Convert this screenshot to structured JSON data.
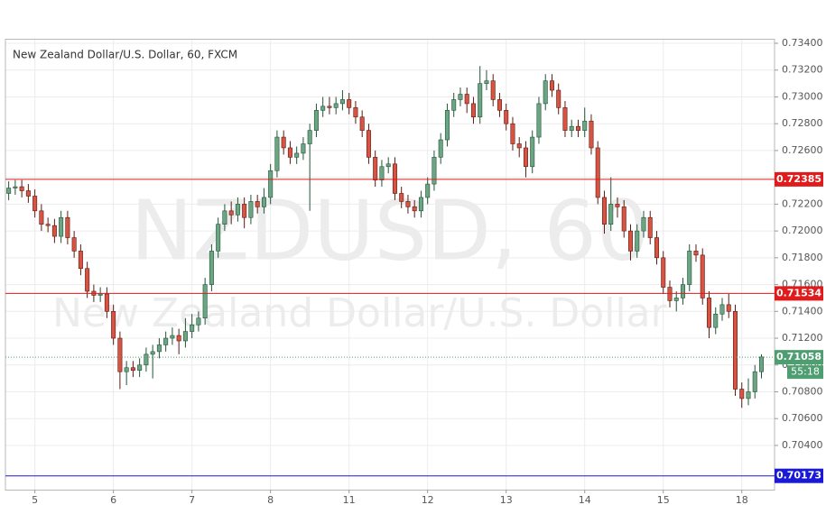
{
  "chart_data": {
    "type": "candlestick",
    "title": "New Zealand Dollar/U.S. Dollar, 60, FXCM",
    "watermark": "NZDUSD, 60",
    "watermark_sub": "New Zealand Dollar/U.S. Dollar",
    "up_color": "#6ba583",
    "down_color": "#d75442",
    "up_border": "#225437",
    "down_border": "#5b1a13",
    "grid": true,
    "xlim": [
      -9,
      226
    ],
    "xticks": [
      {
        "value": 0,
        "label": "5"
      },
      {
        "value": 24,
        "label": "6"
      },
      {
        "value": 48,
        "label": "7"
      },
      {
        "value": 72,
        "label": "8"
      },
      {
        "value": 96,
        "label": "11"
      },
      {
        "value": 120,
        "label": "12"
      },
      {
        "value": 144,
        "label": "13"
      },
      {
        "value": 168,
        "label": "14"
      },
      {
        "value": 192,
        "label": "15"
      },
      {
        "value": 216,
        "label": "18"
      }
    ],
    "ylim": [
      0.7007,
      0.73427
    ],
    "yticks": [
      {
        "value": 0.704,
        "label": "0.70400"
      },
      {
        "value": 0.706,
        "label": "0.70600"
      },
      {
        "value": 0.708,
        "label": "0.70800"
      },
      {
        "value": 0.71,
        "label": "0.71000"
      },
      {
        "value": 0.712,
        "label": "0.71200"
      },
      {
        "value": 0.714,
        "label": "0.71400"
      },
      {
        "value": 0.716,
        "label": "0.71600"
      },
      {
        "value": 0.718,
        "label": "0.71800"
      },
      {
        "value": 0.72,
        "label": "0.72000"
      },
      {
        "value": 0.722,
        "label": "0.72200"
      },
      {
        "value": 0.724,
        "label": "0.72400"
      },
      {
        "value": 0.726,
        "label": "0.72600"
      },
      {
        "value": 0.728,
        "label": "0.72800"
      },
      {
        "value": 0.73,
        "label": "0.73000"
      },
      {
        "value": 0.732,
        "label": "0.73200"
      },
      {
        "value": 0.734,
        "label": "0.73400"
      }
    ],
    "levels": [
      {
        "value": 0.72385,
        "color": "#e01b1b"
      },
      {
        "value": 0.71534,
        "color": "#e01b1b"
      },
      {
        "value": 0.70173,
        "color": "#1a1ad6"
      }
    ],
    "last_price": 0.71058,
    "last_color": "#4e9e72",
    "countdown": "55:18",
    "x": [
      -8,
      -6,
      -4,
      -2,
      0,
      2,
      4,
      6,
      8,
      10,
      12,
      14,
      16,
      18,
      20,
      22,
      24,
      26,
      28,
      30,
      32,
      34,
      36,
      38,
      40,
      42,
      44,
      46,
      48,
      50,
      52,
      54,
      56,
      58,
      60,
      62,
      64,
      66,
      68,
      70,
      72,
      74,
      76,
      78,
      80,
      82,
      84,
      86,
      88,
      90,
      92,
      94,
      96,
      98,
      100,
      102,
      104,
      106,
      108,
      110,
      112,
      114,
      116,
      118,
      120,
      122,
      124,
      126,
      128,
      130,
      132,
      134,
      136,
      138,
      140,
      142,
      144,
      146,
      148,
      150,
      152,
      154,
      156,
      158,
      160,
      162,
      164,
      166,
      168,
      170,
      172,
      174,
      176,
      178,
      180,
      182,
      184,
      186,
      188,
      190,
      192,
      194,
      196,
      198,
      200,
      202,
      204,
      206,
      208,
      210,
      212,
      214,
      216,
      218,
      220,
      222
    ],
    "open": [
      0.7228,
      0.7232,
      0.7233,
      0.723,
      0.7226,
      0.7215,
      0.7205,
      0.7204,
      0.7196,
      0.721,
      0.7195,
      0.7185,
      0.7172,
      0.7155,
      0.7152,
      0.7153,
      0.714,
      0.712,
      0.7095,
      0.7098,
      0.7096,
      0.71,
      0.7108,
      0.711,
      0.7115,
      0.712,
      0.7122,
      0.7118,
      0.7125,
      0.713,
      0.7135,
      0.716,
      0.7185,
      0.7205,
      0.7215,
      0.7212,
      0.722,
      0.721,
      0.7222,
      0.7218,
      0.7225,
      0.7245,
      0.727,
      0.7262,
      0.7255,
      0.7258,
      0.7265,
      0.7275,
      0.729,
      0.7293,
      0.7292,
      0.7295,
      0.7298,
      0.7292,
      0.7285,
      0.7275,
      0.7255,
      0.7238,
      0.7248,
      0.725,
      0.7228,
      0.7222,
      0.7218,
      0.7215,
      0.7225,
      0.7235,
      0.7255,
      0.7268,
      0.729,
      0.7298,
      0.7302,
      0.7295,
      0.7285,
      0.731,
      0.7312,
      0.7298,
      0.729,
      0.728,
      0.7265,
      0.7262,
      0.7248,
      0.727,
      0.7295,
      0.7312,
      0.7305,
      0.7292,
      0.7275,
      0.7278,
      0.7275,
      0.7282,
      0.7262,
      0.7225,
      0.7205,
      0.722,
      0.7218,
      0.72,
      0.7185,
      0.72,
      0.721,
      0.7195,
      0.718,
      0.7158,
      0.7148,
      0.715,
      0.716,
      0.7185,
      0.7182,
      0.715,
      0.7128,
      0.7138,
      0.7145,
      0.714,
      0.7082,
      0.7075,
      0.708,
      0.7095
    ],
    "high": [
      0.7237,
      0.7238,
      0.7238,
      0.7235,
      0.7231,
      0.722,
      0.721,
      0.7209,
      0.7215,
      0.7215,
      0.72,
      0.719,
      0.7177,
      0.716,
      0.7158,
      0.7158,
      0.7145,
      0.7125,
      0.7103,
      0.7103,
      0.7105,
      0.7113,
      0.7115,
      0.712,
      0.7125,
      0.7128,
      0.7127,
      0.7135,
      0.7138,
      0.714,
      0.7165,
      0.719,
      0.721,
      0.722,
      0.7222,
      0.7225,
      0.7225,
      0.7227,
      0.7227,
      0.7232,
      0.725,
      0.7275,
      0.7275,
      0.7267,
      0.7263,
      0.727,
      0.728,
      0.7295,
      0.73,
      0.73,
      0.73,
      0.7305,
      0.7303,
      0.7297,
      0.729,
      0.728,
      0.726,
      0.7253,
      0.7255,
      0.7255,
      0.7233,
      0.7227,
      0.7223,
      0.723,
      0.724,
      0.726,
      0.7273,
      0.7295,
      0.7303,
      0.7307,
      0.7307,
      0.73,
      0.7323,
      0.732,
      0.7317,
      0.7303,
      0.7295,
      0.7285,
      0.727,
      0.7267,
      0.7275,
      0.73,
      0.7317,
      0.7317,
      0.731,
      0.7297,
      0.7283,
      0.7283,
      0.7292,
      0.7287,
      0.7267,
      0.723,
      0.724,
      0.7225,
      0.7223,
      0.7205,
      0.7205,
      0.7215,
      0.7215,
      0.72,
      0.7185,
      0.7163,
      0.7155,
      0.7165,
      0.719,
      0.719,
      0.7187,
      0.7155,
      0.7143,
      0.715,
      0.7153,
      0.7145,
      0.7087,
      0.709,
      0.71,
      0.7108
    ],
    "low": [
      0.7223,
      0.7227,
      0.7225,
      0.7221,
      0.721,
      0.72,
      0.7199,
      0.7191,
      0.7191,
      0.719,
      0.718,
      0.7167,
      0.715,
      0.7147,
      0.7147,
      0.7135,
      0.7115,
      0.7082,
      0.7085,
      0.7091,
      0.7091,
      0.7095,
      0.709,
      0.7105,
      0.711,
      0.7115,
      0.7108,
      0.7113,
      0.712,
      0.7125,
      0.713,
      0.7155,
      0.718,
      0.72,
      0.7205,
      0.7207,
      0.7202,
      0.7205,
      0.7213,
      0.7213,
      0.722,
      0.724,
      0.7257,
      0.725,
      0.725,
      0.7253,
      0.7215,
      0.727,
      0.7285,
      0.7287,
      0.7287,
      0.729,
      0.7287,
      0.728,
      0.727,
      0.725,
      0.7233,
      0.7233,
      0.7243,
      0.7223,
      0.7217,
      0.7213,
      0.721,
      0.721,
      0.722,
      0.723,
      0.725,
      0.7263,
      0.7285,
      0.7293,
      0.7288,
      0.728,
      0.728,
      0.7305,
      0.7293,
      0.7285,
      0.7275,
      0.726,
      0.7255,
      0.724,
      0.7243,
      0.7265,
      0.729,
      0.73,
      0.7287,
      0.727,
      0.727,
      0.727,
      0.727,
      0.7257,
      0.722,
      0.7198,
      0.72,
      0.721,
      0.7195,
      0.7178,
      0.718,
      0.7195,
      0.719,
      0.7175,
      0.7153,
      0.7143,
      0.714,
      0.7145,
      0.7155,
      0.7177,
      0.7145,
      0.712,
      0.7123,
      0.7133,
      0.7135,
      0.7077,
      0.7068,
      0.707,
      0.7075,
      0.709
    ],
    "close": [
      0.7232,
      0.7233,
      0.723,
      0.7226,
      0.7215,
      0.7205,
      0.7204,
      0.7196,
      0.721,
      0.7195,
      0.7185,
      0.7172,
      0.7155,
      0.7152,
      0.7153,
      0.714,
      0.712,
      0.7095,
      0.7098,
      0.7096,
      0.71,
      0.7108,
      0.711,
      0.7115,
      0.712,
      0.7122,
      0.7118,
      0.7125,
      0.713,
      0.7135,
      0.716,
      0.7185,
      0.7205,
      0.7215,
      0.7212,
      0.722,
      0.721,
      0.7222,
      0.7218,
      0.7225,
      0.7245,
      0.727,
      0.7262,
      0.7255,
      0.7258,
      0.7265,
      0.7275,
      0.729,
      0.7293,
      0.7292,
      0.7295,
      0.7298,
      0.7292,
      0.7285,
      0.7275,
      0.7255,
      0.7238,
      0.7248,
      0.725,
      0.7228,
      0.7222,
      0.7218,
      0.7215,
      0.7225,
      0.7235,
      0.7255,
      0.7268,
      0.729,
      0.7298,
      0.7302,
      0.7295,
      0.7285,
      0.731,
      0.7312,
      0.7298,
      0.729,
      0.728,
      0.7265,
      0.7262,
      0.7248,
      0.727,
      0.7295,
      0.7312,
      0.7305,
      0.7292,
      0.7275,
      0.7278,
      0.7275,
      0.7282,
      0.7262,
      0.7225,
      0.7205,
      0.722,
      0.7218,
      0.72,
      0.7185,
      0.72,
      0.721,
      0.7195,
      0.718,
      0.7158,
      0.7148,
      0.715,
      0.716,
      0.7185,
      0.7182,
      0.715,
      0.7128,
      0.7138,
      0.7145,
      0.714,
      0.7082,
      0.7075,
      0.708,
      0.7095,
      0.7106
    ]
  }
}
